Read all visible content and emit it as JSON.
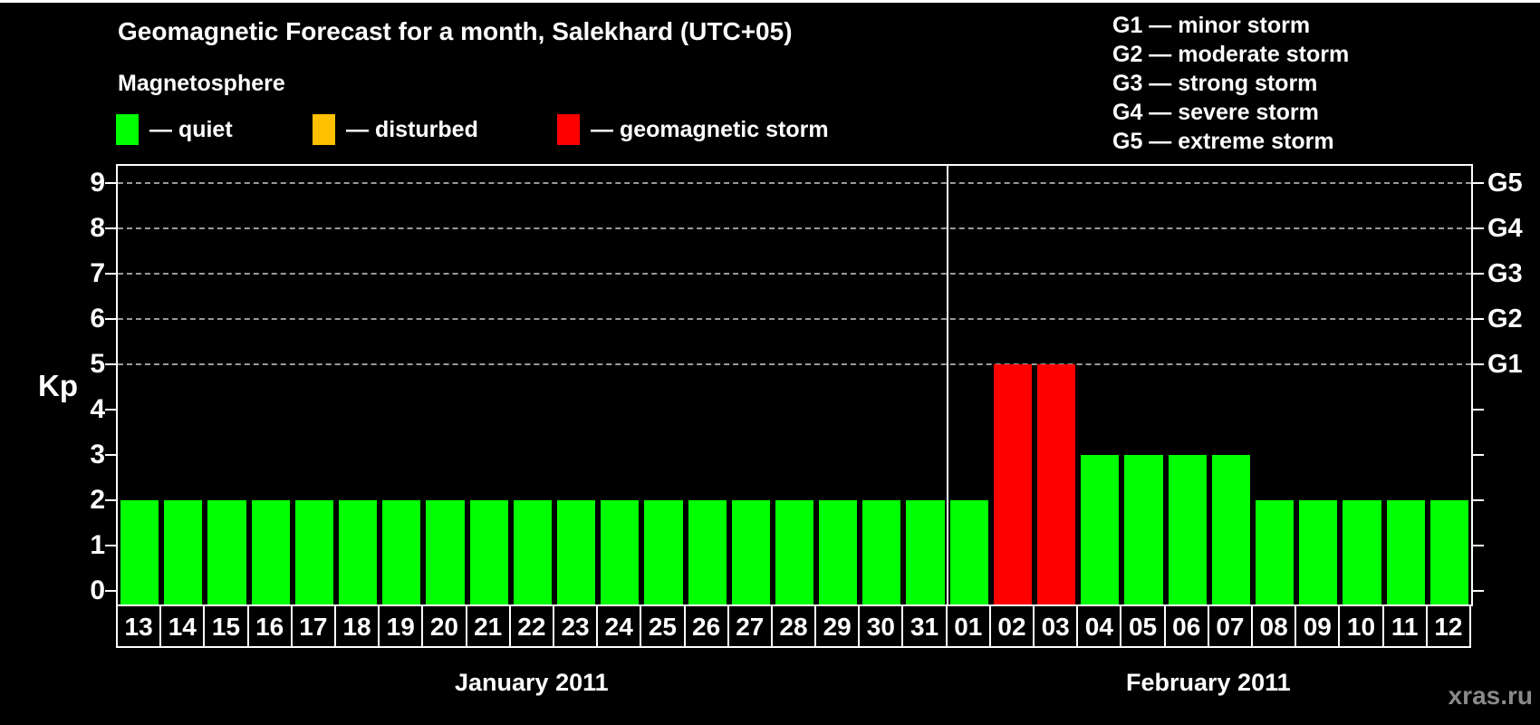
{
  "header": {
    "title": "Geomagnetic Forecast for a month, Salekhard (UTC+05)",
    "subtitle": "Magnetosphere",
    "watermark": "xras.ru"
  },
  "colors": {
    "quiet": "#00ff00",
    "disturbed": "#ffc000",
    "storm": "#ff0000",
    "background": "#000000",
    "text": "#ffffff",
    "gridline": "#9a9a9a",
    "watermark": "#8a8a8a"
  },
  "legend": {
    "items": [
      {
        "key": "quiet",
        "label": "— quiet",
        "color": "#00ff00"
      },
      {
        "key": "disturbed",
        "label": "— disturbed",
        "color": "#ffc000"
      },
      {
        "key": "storm",
        "label": "— geomagnetic storm",
        "color": "#ff0000"
      }
    ]
  },
  "g_scale_legend": {
    "lines": [
      "G1 — minor storm",
      "G2 — moderate storm",
      "G3 — strong storm",
      "G4 — severe storm",
      "G5 — extreme storm"
    ]
  },
  "chart_data": {
    "type": "bar",
    "title": "Geomagnetic Forecast for a month, Salekhard (UTC+05)",
    "ylabel": "Kp",
    "ylim": [
      0,
      9
    ],
    "y_ticks": [
      0,
      1,
      2,
      3,
      4,
      5,
      6,
      7,
      8,
      9
    ],
    "grid": "horizontal dashed lines at Kp 5,6,7,8,9",
    "legend_position": "top",
    "right_axis_labels": [
      {
        "label": "G1",
        "kp": 5
      },
      {
        "label": "G2",
        "kp": 6
      },
      {
        "label": "G3",
        "kp": 7
      },
      {
        "label": "G4",
        "kp": 8
      },
      {
        "label": "G5",
        "kp": 9
      }
    ],
    "months": [
      {
        "label": "January 2011",
        "days": [
          {
            "day": "13",
            "kp": 2,
            "status": "quiet"
          },
          {
            "day": "14",
            "kp": 2,
            "status": "quiet"
          },
          {
            "day": "15",
            "kp": 2,
            "status": "quiet"
          },
          {
            "day": "16",
            "kp": 2,
            "status": "quiet"
          },
          {
            "day": "17",
            "kp": 2,
            "status": "quiet"
          },
          {
            "day": "18",
            "kp": 2,
            "status": "quiet"
          },
          {
            "day": "19",
            "kp": 2,
            "status": "quiet"
          },
          {
            "day": "20",
            "kp": 2,
            "status": "quiet"
          },
          {
            "day": "21",
            "kp": 2,
            "status": "quiet"
          },
          {
            "day": "22",
            "kp": 2,
            "status": "quiet"
          },
          {
            "day": "23",
            "kp": 2,
            "status": "quiet"
          },
          {
            "day": "24",
            "kp": 2,
            "status": "quiet"
          },
          {
            "day": "25",
            "kp": 2,
            "status": "quiet"
          },
          {
            "day": "26",
            "kp": 2,
            "status": "quiet"
          },
          {
            "day": "27",
            "kp": 2,
            "status": "quiet"
          },
          {
            "day": "28",
            "kp": 2,
            "status": "quiet"
          },
          {
            "day": "29",
            "kp": 2,
            "status": "quiet"
          },
          {
            "day": "30",
            "kp": 2,
            "status": "quiet"
          },
          {
            "day": "31",
            "kp": 2,
            "status": "quiet"
          }
        ]
      },
      {
        "label": "February 2011",
        "days": [
          {
            "day": "01",
            "kp": 2,
            "status": "quiet"
          },
          {
            "day": "02",
            "kp": 5,
            "status": "storm"
          },
          {
            "day": "03",
            "kp": 5,
            "status": "storm"
          },
          {
            "day": "04",
            "kp": 3,
            "status": "quiet"
          },
          {
            "day": "05",
            "kp": 3,
            "status": "quiet"
          },
          {
            "day": "06",
            "kp": 3,
            "status": "quiet"
          },
          {
            "day": "07",
            "kp": 3,
            "status": "quiet"
          },
          {
            "day": "08",
            "kp": 2,
            "status": "quiet"
          },
          {
            "day": "09",
            "kp": 2,
            "status": "quiet"
          },
          {
            "day": "10",
            "kp": 2,
            "status": "quiet"
          },
          {
            "day": "11",
            "kp": 2,
            "status": "quiet"
          },
          {
            "day": "12",
            "kp": 2,
            "status": "quiet"
          }
        ]
      }
    ]
  }
}
